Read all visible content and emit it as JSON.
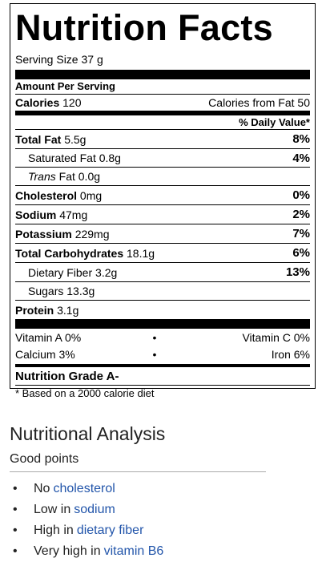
{
  "label": {
    "title": "Nutrition Facts",
    "serving_size": "Serving Size 37 g",
    "amount_per_serving": "Amount Per Serving",
    "calories_label": "Calories",
    "calories_value": "120",
    "calories_from_fat": "Calories from Fat 50",
    "daily_value_header": "% Daily Value*",
    "nutrients": [
      {
        "name": "Total Fat",
        "amount": "5.5g",
        "pct": "8%"
      },
      {
        "name": "Saturated Fat",
        "amount": "0.8g",
        "pct": "4%"
      },
      {
        "name_italic": "Trans",
        "name": "Fat",
        "amount": "0.0g",
        "pct": ""
      },
      {
        "name": "Cholesterol",
        "amount": "0mg",
        "pct": "0%"
      },
      {
        "name": "Sodium",
        "amount": "47mg",
        "pct": "2%"
      },
      {
        "name": "Potassium",
        "amount": "229mg",
        "pct": "7%"
      },
      {
        "name": "Total Carbohydrates",
        "amount": "18.1g",
        "pct": "6%"
      },
      {
        "name": "Dietary Fiber",
        "amount": "3.2g",
        "pct": "13%"
      },
      {
        "name": "Sugars",
        "amount": "13.3g",
        "pct": ""
      },
      {
        "name": "Protein",
        "amount": "3.1g",
        "pct": ""
      }
    ],
    "vitamins": [
      {
        "left": "Vitamin A 0%",
        "right": "Vitamin C 0%"
      },
      {
        "left": "Calcium 3%",
        "right": "Iron 6%"
      }
    ],
    "bullet": "•",
    "grade": "Nutrition Grade A-",
    "footnote": "* Based on a 2000 calorie diet"
  },
  "analysis": {
    "heading": "Nutritional Analysis",
    "subheading": "Good points",
    "bullet": "•",
    "points": [
      {
        "prefix": "No",
        "link": "cholesterol"
      },
      {
        "prefix": "Low in",
        "link": "sodium"
      },
      {
        "prefix": "High in",
        "link": "dietary fiber"
      },
      {
        "prefix": "Very high in",
        "link": "vitamin B6"
      }
    ]
  }
}
